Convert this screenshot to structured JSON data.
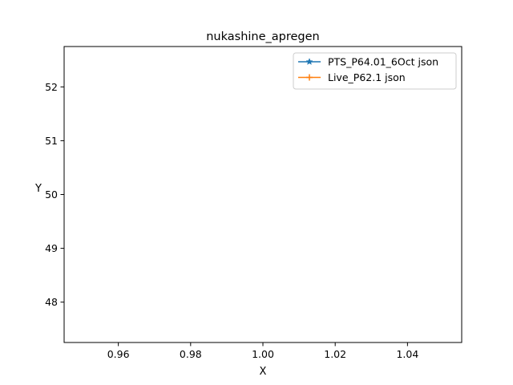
{
  "chart_data": {
    "type": "line",
    "title": "nukashine_apregen",
    "xlabel": "X",
    "ylabel": "Y",
    "xlim": [
      0.945,
      1.055
    ],
    "ylim": [
      47.25,
      52.75
    ],
    "x_ticks": [
      0.96,
      0.98,
      1.0,
      1.02,
      1.04
    ],
    "x_tick_labels": [
      "0.96",
      "0.98",
      "1.00",
      "1.02",
      "1.04"
    ],
    "y_ticks": [
      48,
      49,
      50,
      51,
      52
    ],
    "y_tick_labels": [
      "48",
      "49",
      "50",
      "51",
      "52"
    ],
    "grid": false,
    "legend_position": "top-right",
    "series": [
      {
        "name": "PTS_P64.01_6Oct json",
        "color": "#1f77b4",
        "marker": "star",
        "x": [],
        "y": []
      },
      {
        "name": "Live_P62.1 json",
        "color": "#ff7f0e",
        "marker": "plus",
        "x": [],
        "y": []
      }
    ]
  }
}
